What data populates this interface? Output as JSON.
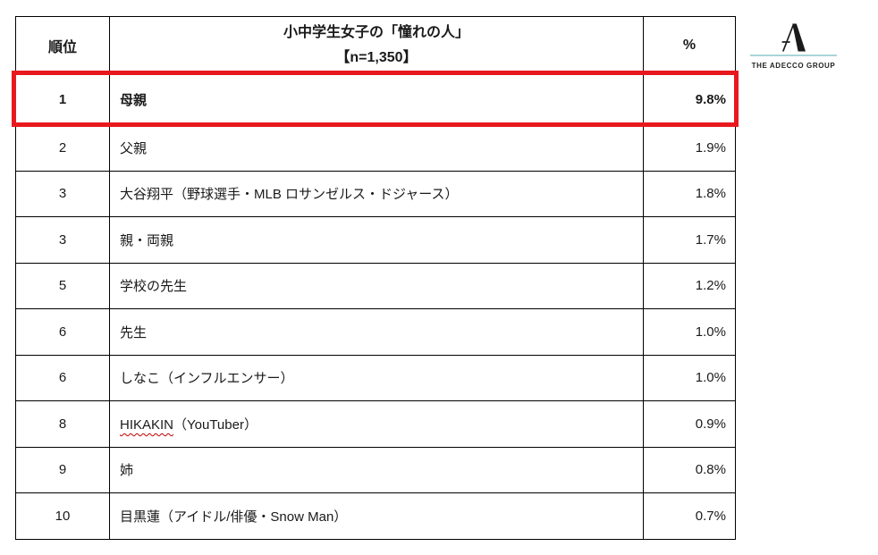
{
  "colors": {
    "highlight_red": "#e8191e",
    "logo_teal": "#a9d5d6",
    "squiggle_red": "#c00000",
    "ink": "#1a1a1a"
  },
  "table": {
    "headers": {
      "rank": "順位",
      "item_line1": "小中学生女子の「憧れの人」",
      "item_line2": "【n=1,350】",
      "pct": "%"
    },
    "rows": [
      {
        "rank": "1",
        "label_parts": [
          {
            "text": "母親"
          }
        ],
        "pct": "9.8%",
        "highlighted": true
      },
      {
        "rank": "2",
        "label_parts": [
          {
            "text": "父親"
          }
        ],
        "pct": "1.9%"
      },
      {
        "rank": "3",
        "label_parts": [
          {
            "text": "大谷翔平（野球選手・MLB ロサンゼルス・ドジャース）"
          }
        ],
        "pct": "1.8%"
      },
      {
        "rank": "3",
        "label_parts": [
          {
            "text": "親・両親"
          }
        ],
        "pct": "1.7%"
      },
      {
        "rank": "5",
        "label_parts": [
          {
            "text": "学校の先生"
          }
        ],
        "pct": "1.2%"
      },
      {
        "rank": "6",
        "label_parts": [
          {
            "text": "先生"
          }
        ],
        "pct": "1.0%"
      },
      {
        "rank": "6",
        "label_parts": [
          {
            "text": "しなこ（インフルエンサー）"
          }
        ],
        "pct": "1.0%"
      },
      {
        "rank": "8",
        "label_parts": [
          {
            "text": "HIKAKIN",
            "spellcheck_squiggle": true
          },
          {
            "text": "（YouTuber）"
          }
        ],
        "pct": "0.9%"
      },
      {
        "rank": "9",
        "label_parts": [
          {
            "text": "姉"
          }
        ],
        "pct": "0.8%"
      },
      {
        "rank": "10",
        "label_parts": [
          {
            "text": "目黒蓮（アイドル/俳優・Snow Man）"
          }
        ],
        "pct": "0.7%"
      }
    ]
  },
  "logo": {
    "wordmark": "THE ADECCO GROUP",
    "mark_name": "adecco-a-mark"
  }
}
